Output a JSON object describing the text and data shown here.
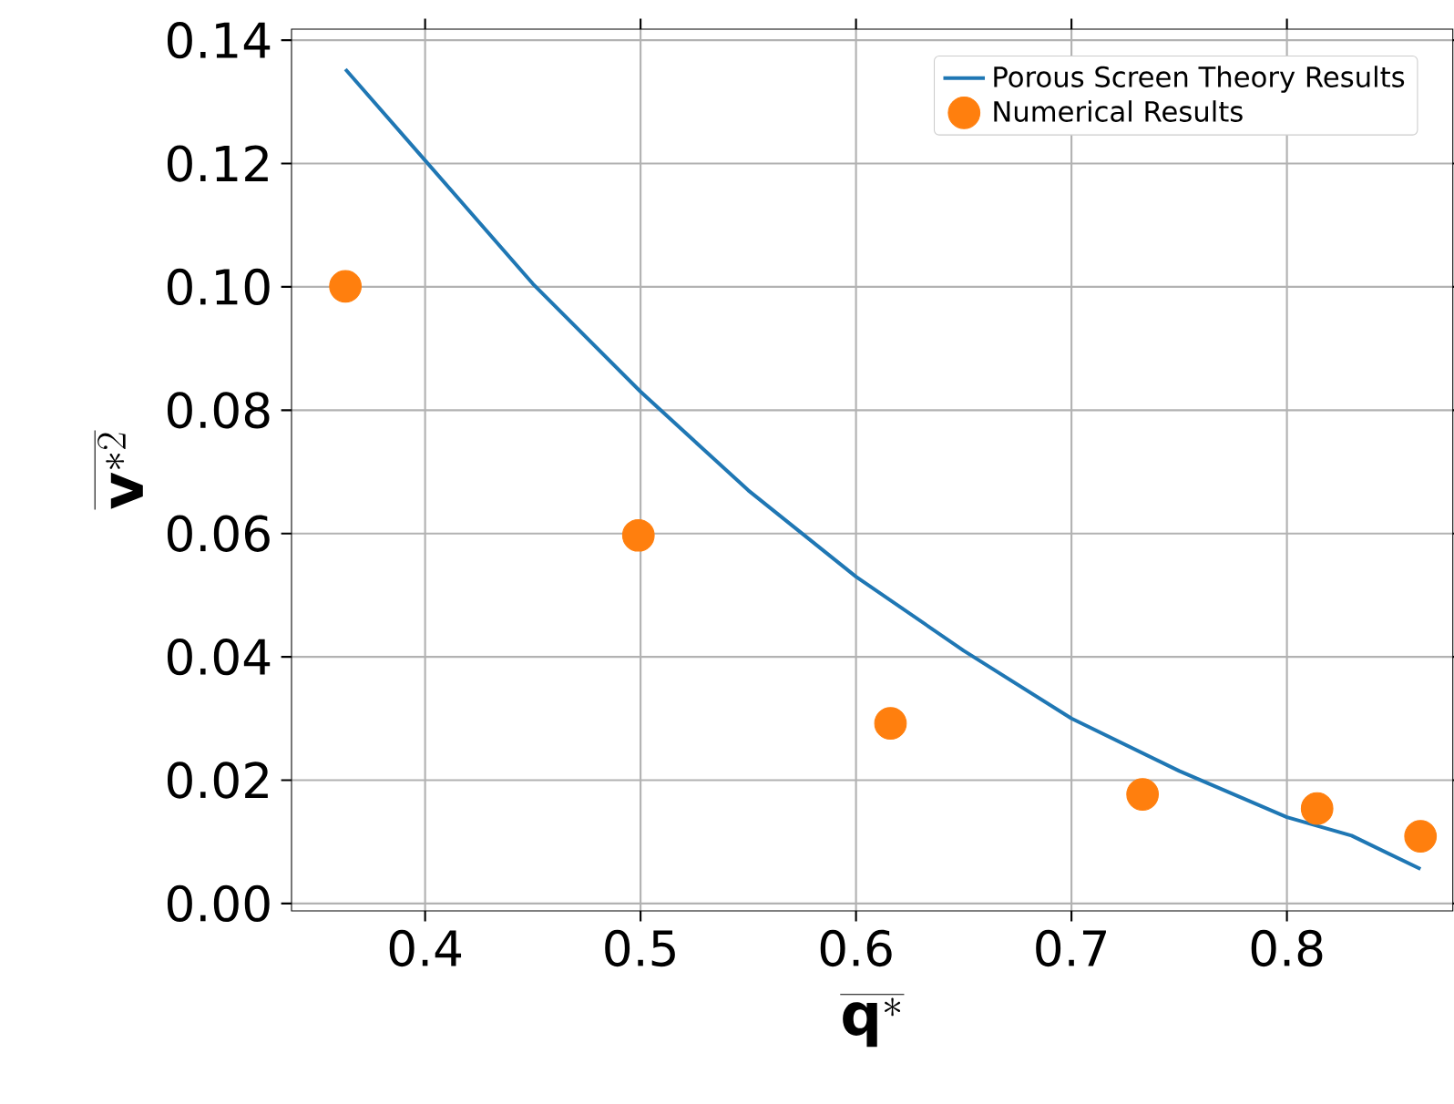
{
  "chart_data": {
    "type": "line",
    "xlabel": "\\overline{\\mathbf{q}^{*}}",
    "ylabel": "\\overline{\\mathbf{v}^{*2}}",
    "xlim": [
      0.338,
      0.877
    ],
    "ylim": [
      -0.0012,
      0.1418
    ],
    "xticks": [
      0.4,
      0.5,
      0.6,
      0.7,
      0.8
    ],
    "yticks": [
      {
        "value": 0,
        "label": "0.00"
      },
      {
        "value": 0.02,
        "label": "0.02"
      },
      {
        "value": 0.04,
        "label": "0.04"
      },
      {
        "value": 0.06,
        "label": "0.06"
      },
      {
        "value": 0.08,
        "label": "0.08"
      },
      {
        "value": 0.1,
        "label": "0.10"
      },
      {
        "value": 0.12,
        "label": "0.12"
      },
      {
        "value": 0.14,
        "label": "0.14"
      }
    ],
    "grid": true,
    "legend": "top right",
    "series": [
      {
        "name": "Porous Screen Theory Results",
        "color": "#1f77b4",
        "marker": "none",
        "x": [
          0.363,
          0.4,
          0.45,
          0.5,
          0.55,
          0.6,
          0.65,
          0.7,
          0.75,
          0.8,
          0.83,
          0.862
        ],
        "values": [
          0.1353,
          0.1205,
          0.1005,
          0.083,
          0.067,
          0.053,
          0.041,
          0.03,
          0.0215,
          0.014,
          0.011,
          0.0056
        ]
      },
      {
        "name": "Numerical Results",
        "type": "scatter",
        "color": "#ff7f0e",
        "marker": "circle",
        "x": [
          0.363,
          0.499,
          0.616,
          0.733,
          0.814,
          0.862
        ],
        "values": [
          0.1001,
          0.0597,
          0.0292,
          0.0177,
          0.0154,
          0.0109
        ]
      }
    ]
  }
}
